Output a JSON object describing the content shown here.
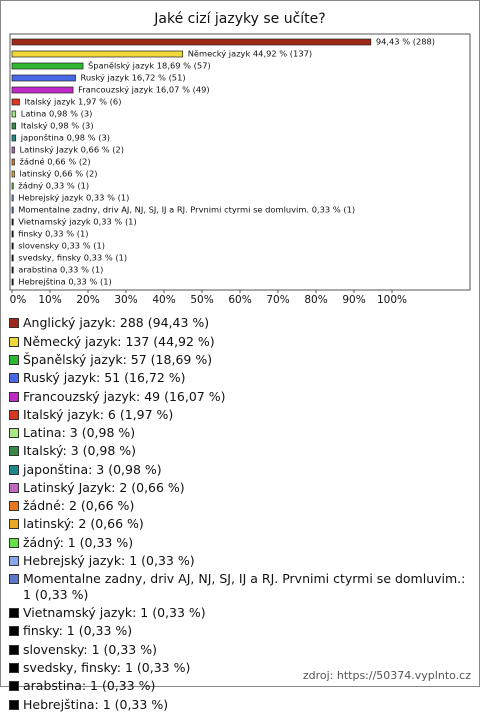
{
  "chart_data": {
    "type": "bar",
    "orientation": "horizontal",
    "title": "Jaké cizí jazyky se učíte?",
    "values": [
      94.43,
      44.92,
      18.69,
      16.72,
      16.07,
      1.97,
      0.98,
      0.98,
      0.98,
      0.66,
      0.66,
      0.66,
      0.33,
      0.33,
      0.33,
      0.33,
      0.33,
      0.33,
      0.33,
      0.33,
      0.33
    ],
    "value_labels": [
      "94,43 % (288)",
      "Německý jazyk 44,92 % (137)",
      "Španělský jazyk 18,69 % (57)",
      "Ruský jazyk 16,72 % (51)",
      "Francouzský jazyk 16,07 % (49)",
      "Italský jazyk 1,97 % (6)",
      "Latina 0,98 % (3)",
      "Italský 0,98 % (3)",
      "japonština 0,98 % (3)",
      "Latinský Jazyk 0,66 % (2)",
      "žádné 0,66 % (2)",
      "latinský 0,66 % (2)",
      "žádný 0,33 % (1)",
      "Hebrejský jazyk 0,33 % (1)",
      "Momentalne zadny, driv AJ, NJ, SJ, IJ a RJ. Prvnimi ctyrmi se domluvim. 0,33 % (1)",
      "Vietnamský jazyk 0,33 % (1)",
      "finsky 0,33 % (1)",
      "slovensky 0,33 % (1)",
      "svedsky, finsky 0,33 % (1)",
      "arabstina 0,33 % (1)",
      "Hebrejština 0,33 % (1)"
    ],
    "colors": [
      "#a02818",
      "#f0d838",
      "#30b830",
      "#4868e8",
      "#c028c8",
      "#d83820",
      "#a8e888",
      "#388848",
      "#208888",
      "#c068c0",
      "#e87820",
      "#e8a828",
      "#68e048",
      "#88a8e8",
      "#5878c8",
      "#000000",
      "#000000",
      "#000000",
      "#000000",
      "#000000",
      "#000000"
    ],
    "legend": [
      "Anglický jazyk: 288 (94,43 %)",
      "Německý jazyk: 137 (44,92 %)",
      "Španělský jazyk: 57 (18,69 %)",
      "Ruský jazyk: 51 (16,72 %)",
      "Francouzský jazyk: 49 (16,07 %)",
      "Italský jazyk: 6 (1,97 %)",
      "Latina: 3 (0,98 %)",
      "Italský: 3 (0,98 %)",
      "japonština: 3 (0,98 %)",
      "Latinský Jazyk: 2 (0,66 %)",
      "žádné: 2 (0,66 %)",
      "latinský: 2 (0,66 %)",
      "žádný: 1 (0,33 %)",
      "Hebrejský jazyk: 1 (0,33 %)",
      "Momentalne zadny, driv AJ, NJ, SJ, IJ a RJ. Prvnimi ctyrmi se domluvim.: 1 (0,33 %)",
      "Vietnamský jazyk: 1 (0,33 %)",
      "finsky: 1 (0,33 %)",
      "slovensky: 1 (0,33 %)",
      "svedsky, finsky: 1 (0,33 %)",
      "arabstina: 1 (0,33 %)",
      "Hebrejština: 1 (0,33 %)"
    ],
    "xlim": [
      0,
      120
    ],
    "xticks": [
      {
        "value": 0,
        "label": "0%"
      },
      {
        "value": 10,
        "label": "10%"
      },
      {
        "value": 20,
        "label": "20%"
      },
      {
        "value": 30,
        "label": "30%"
      },
      {
        "value": 40,
        "label": "40%"
      },
      {
        "value": 50,
        "label": "50%"
      },
      {
        "value": 60,
        "label": "60%"
      },
      {
        "value": 70,
        "label": "70%"
      },
      {
        "value": 80,
        "label": "80%"
      },
      {
        "value": 90,
        "label": "90%"
      },
      {
        "value": 100,
        "label": "100%"
      }
    ],
    "source": "zdroj: https://50374.vyplnto.cz"
  }
}
